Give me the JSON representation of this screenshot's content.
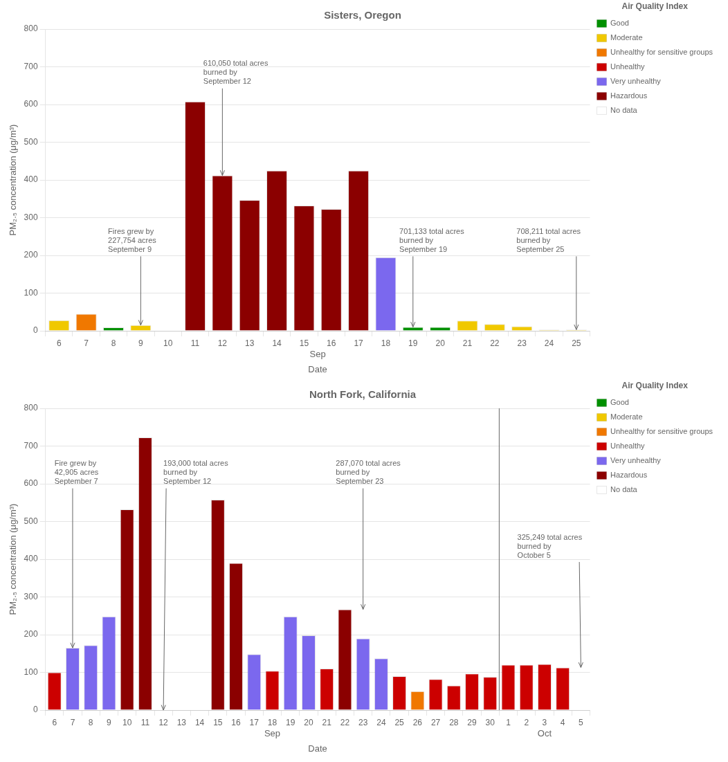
{
  "chart_data": [
    {
      "type": "bar",
      "title": "Sisters, Oregon",
      "categories": [
        "6",
        "7",
        "8",
        "9",
        "10",
        "11",
        "12",
        "13",
        "14",
        "15",
        "16",
        "17",
        "18",
        "19",
        "20",
        "21",
        "22",
        "23",
        "24",
        "25"
      ],
      "series": [
        {
          "name": "Good",
          "color": "#009000",
          "values": [
            null,
            null,
            9,
            null,
            null,
            null,
            null,
            null,
            null,
            null,
            null,
            null,
            null,
            10,
            10,
            null,
            null,
            null,
            null,
            null
          ]
        },
        {
          "name": "Moderate",
          "color": "#F0C800",
          "values": [
            28,
            null,
            null,
            15,
            null,
            null,
            null,
            null,
            null,
            null,
            null,
            null,
            null,
            null,
            null,
            27,
            18,
            12,
            3,
            3
          ]
        },
        {
          "name": "Unhealthy for sensitive groups",
          "color": "#F07800",
          "values": [
            null,
            45,
            null,
            null,
            null,
            null,
            null,
            null,
            null,
            null,
            null,
            null,
            null,
            null,
            null,
            null,
            null,
            null,
            null,
            null
          ]
        },
        {
          "name": "Unhealthy",
          "color": "#CC0000",
          "values": [
            null,
            null,
            null,
            null,
            null,
            null,
            null,
            null,
            null,
            null,
            null,
            null,
            null,
            null,
            null,
            null,
            null,
            null,
            null,
            null
          ]
        },
        {
          "name": "Very unhealthy",
          "color": "#7B68EE",
          "values": [
            null,
            null,
            null,
            null,
            null,
            null,
            null,
            null,
            null,
            null,
            null,
            null,
            195,
            null,
            null,
            null,
            null,
            null,
            null,
            null
          ]
        },
        {
          "name": "Hazardous",
          "color": "#8B0000",
          "values": [
            null,
            null,
            null,
            null,
            null,
            608,
            412,
            347,
            425,
            332,
            323,
            425,
            null,
            null,
            null,
            null,
            null,
            null,
            null,
            null
          ]
        },
        {
          "name": "No data",
          "color": "#FFFFFF",
          "values": [
            null,
            null,
            null,
            null,
            0,
            null,
            null,
            null,
            null,
            null,
            null,
            null,
            null,
            null,
            null,
            null,
            null,
            null,
            null,
            null
          ]
        }
      ],
      "ylim": [
        0,
        800
      ],
      "yticks": [
        0,
        100,
        200,
        300,
        400,
        500,
        600,
        700,
        800
      ],
      "ylabel": "PM₂.₅ concentration (μg/m³)",
      "xlabel": "Date",
      "x_groups": [
        {
          "label": "Sep",
          "first": "6",
          "last": "25"
        }
      ],
      "grid": "y",
      "legend": "upper right",
      "legend_title": "Air Quality Index",
      "annotations": [
        {
          "text": "610,050 total acres\nburned by\nSeptember 12",
          "x": "12",
          "y": 412
        },
        {
          "text": "Fires grew by\n227,754 acres\nSeptember 9",
          "x": "9",
          "y": 15
        },
        {
          "text": "701,133 total acres\nburned by\nSeptember 19",
          "x": "19",
          "y": 10
        },
        {
          "text": "708,211 total acres\nburned by\nSeptember 25",
          "x": "25",
          "y": 3
        }
      ]
    },
    {
      "type": "bar",
      "title": "North Fork, California",
      "categories": [
        "6",
        "7",
        "8",
        "9",
        "10",
        "11",
        "12",
        "13",
        "14",
        "15",
        "16",
        "17",
        "18",
        "19",
        "20",
        "21",
        "22",
        "23",
        "24",
        "25",
        "26",
        "27",
        "28",
        "29",
        "30",
        "1",
        "2",
        "3",
        "4",
        "5"
      ],
      "series": [
        {
          "name": "Good",
          "color": "#009000",
          "values": [
            null,
            null,
            null,
            null,
            null,
            null,
            null,
            null,
            null,
            null,
            null,
            null,
            null,
            null,
            null,
            null,
            null,
            null,
            null,
            null,
            null,
            null,
            null,
            null,
            null,
            null,
            null,
            null,
            null,
            null
          ]
        },
        {
          "name": "Moderate",
          "color": "#F0C800",
          "values": [
            null,
            null,
            null,
            null,
            null,
            null,
            null,
            null,
            null,
            null,
            null,
            null,
            null,
            null,
            null,
            null,
            null,
            null,
            null,
            null,
            null,
            null,
            null,
            null,
            null,
            null,
            null,
            null,
            null,
            null
          ]
        },
        {
          "name": "Unhealthy for sensitive groups",
          "color": "#F07800",
          "values": [
            null,
            null,
            null,
            null,
            null,
            null,
            null,
            null,
            null,
            null,
            null,
            null,
            null,
            null,
            null,
            null,
            null,
            null,
            null,
            null,
            50,
            null,
            null,
            null,
            null,
            null,
            null,
            null,
            null,
            null
          ]
        },
        {
          "name": "Unhealthy",
          "color": "#CC0000",
          "values": [
            100,
            null,
            null,
            null,
            null,
            null,
            null,
            null,
            null,
            null,
            null,
            null,
            104,
            null,
            null,
            110,
            null,
            null,
            null,
            90,
            null,
            82,
            65,
            97,
            88,
            120,
            120,
            122,
            113,
            null
          ]
        },
        {
          "name": "Very unhealthy",
          "color": "#7B68EE",
          "values": [
            null,
            165,
            172,
            248,
            null,
            null,
            null,
            null,
            null,
            null,
            null,
            148,
            null,
            248,
            198,
            null,
            null,
            190,
            137,
            null,
            null,
            null,
            null,
            null,
            null,
            null,
            null,
            null,
            null,
            null
          ]
        },
        {
          "name": "Hazardous",
          "color": "#8B0000",
          "values": [
            null,
            null,
            null,
            null,
            532,
            723,
            null,
            null,
            null,
            558,
            390,
            null,
            null,
            null,
            null,
            null,
            267,
            null,
            null,
            null,
            null,
            null,
            null,
            null,
            null,
            null,
            null,
            null,
            null,
            null
          ]
        },
        {
          "name": "No data",
          "color": "#FFFFFF",
          "values": [
            null,
            null,
            null,
            null,
            null,
            null,
            0,
            0,
            0,
            null,
            null,
            null,
            null,
            null,
            null,
            null,
            null,
            null,
            null,
            null,
            null,
            null,
            null,
            null,
            null,
            null,
            null,
            null,
            null,
            0
          ]
        }
      ],
      "ylim": [
        0,
        800
      ],
      "yticks": [
        0,
        100,
        200,
        300,
        400,
        500,
        600,
        700,
        800
      ],
      "ylabel": "PM₂.₅ concentration (μg/m³)",
      "xlabel": "Date",
      "x_groups": [
        {
          "label": "Sep",
          "first": "6",
          "last": "30"
        },
        {
          "label": "Oct",
          "first": "1",
          "last": "5"
        }
      ],
      "grid": "y",
      "legend": "upper right",
      "legend_title": "Air Quality Index",
      "annotations": [
        {
          "text": "Fire grew by\n42,905 acres\nSeptember 7",
          "x": "7",
          "y": 165
        },
        {
          "text": "193,000 total acres\nburned by\nSeptember 12",
          "x": "12",
          "y": 0
        },
        {
          "text": "287,070 total acres\nburned by\nSeptember 23",
          "x": "23",
          "y": 267
        },
        {
          "text": "325,249 total acres\nburned by\nOctober 5",
          "x": "5",
          "y": 113
        }
      ]
    }
  ]
}
